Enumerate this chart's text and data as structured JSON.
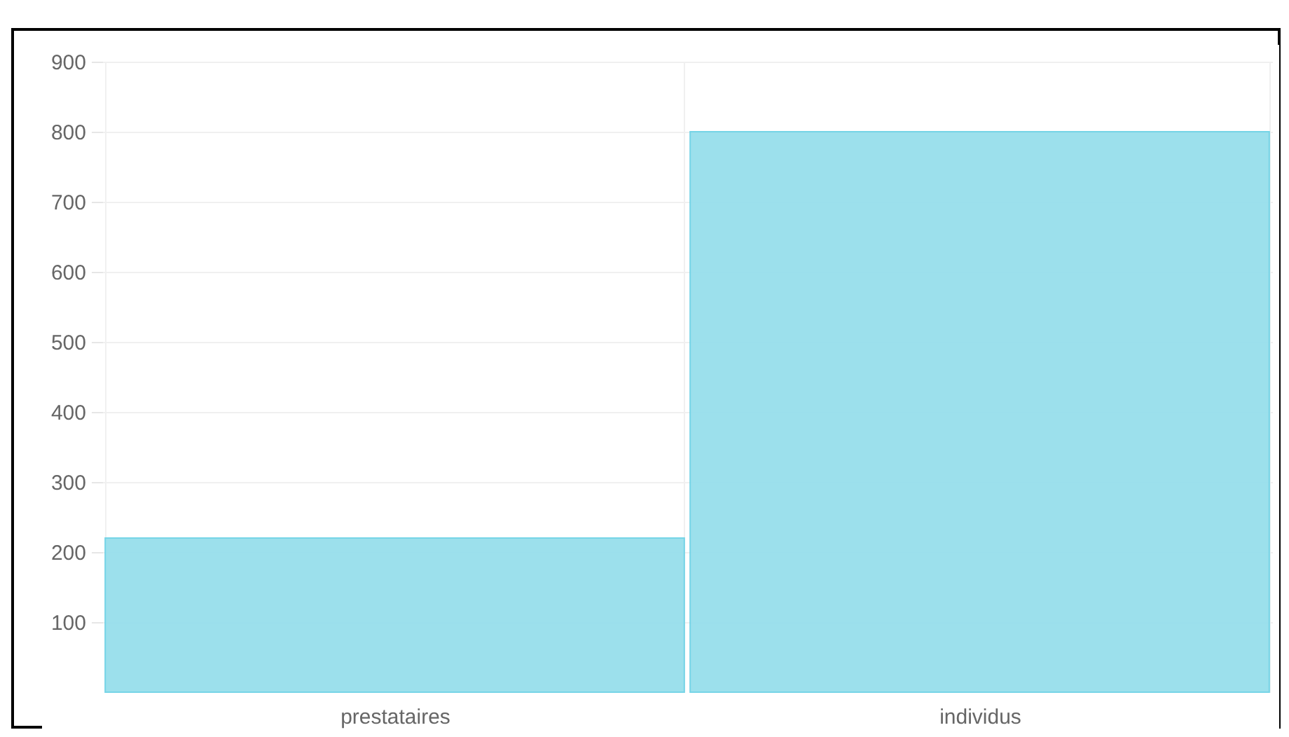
{
  "chart_data": {
    "type": "bar",
    "categories": [
      "prestataires",
      "individus"
    ],
    "values": [
      220,
      800
    ],
    "color": "#97dfec",
    "ylim": [
      0,
      900
    ],
    "yticks": [
      100,
      200,
      300,
      400,
      500,
      600,
      700,
      800,
      900
    ],
    "grid": true
  }
}
